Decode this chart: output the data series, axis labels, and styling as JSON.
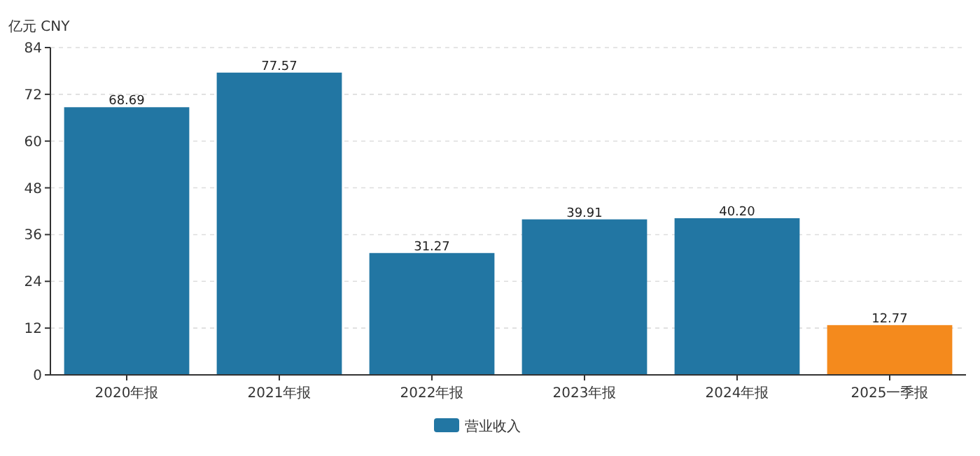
{
  "chart_data": {
    "type": "bar",
    "ylabel": "亿元 CNY",
    "categories": [
      "2020年报",
      "2021年报",
      "2022年报",
      "2023年报",
      "2024年报",
      "2025一季报"
    ],
    "series": [
      {
        "name": "营业收入",
        "color": "#2276a3",
        "colors": [
          "#2276a3",
          "#2276a3",
          "#2276a3",
          "#2276a3",
          "#2276a3",
          "#f48a1d"
        ],
        "values": [
          68.69,
          77.57,
          31.27,
          39.91,
          40.2,
          12.77
        ],
        "value_labels": [
          "68.69",
          "77.57",
          "31.27",
          "39.91",
          "40.20",
          "12.77"
        ]
      }
    ],
    "ylim": [
      0,
      84
    ],
    "yticks": [
      0,
      12,
      24,
      36,
      48,
      60,
      72,
      84
    ],
    "grid": "y",
    "legend": "bottom"
  }
}
